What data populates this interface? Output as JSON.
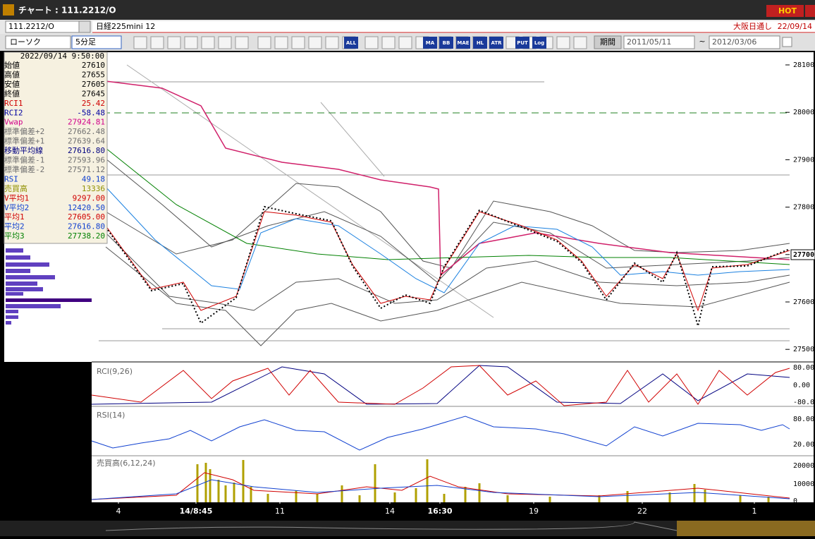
{
  "window": {
    "title": "チャート : 111.2212/O",
    "hot": "HOT"
  },
  "toolbar": {
    "symbol": "111.2212/O",
    "name": "日経225mini 12",
    "market": "大阪日通し",
    "date": "22/09/14",
    "chart_type": "ローソク",
    "interval": "5分足",
    "buttons": [
      "ALL",
      "MA",
      "BB",
      "MAE",
      "HL",
      "ATR",
      "PUT",
      "Log"
    ],
    "period": "期間",
    "from": "2011/05/11",
    "tilde": "~",
    "to": "2012/03/06"
  },
  "info": {
    "datetime": "2022/09/14 9:50:00",
    "rows": [
      {
        "label": "始値",
        "value": "27610",
        "color": "#000000"
      },
      {
        "label": "高値",
        "value": "27655",
        "color": "#000000"
      },
      {
        "label": "安値",
        "value": "27605",
        "color": "#000000"
      },
      {
        "label": "終値",
        "value": "27645",
        "color": "#000000"
      },
      {
        "label": "RCI1",
        "value": "25.42",
        "color": "#d00000"
      },
      {
        "label": "RCI2",
        "value": "-58.48",
        "color": "#0000a0"
      },
      {
        "label": "Vwap",
        "value": "27924.81",
        "color": "#d0008a"
      },
      {
        "label": "標準偏差+2",
        "value": "27662.48",
        "color": "#707070"
      },
      {
        "label": "標準偏差+1",
        "value": "27639.64",
        "color": "#707070"
      },
      {
        "label": "移動平均線",
        "value": "27616.80",
        "color": "#000080"
      },
      {
        "label": "標準偏差-1",
        "value": "27593.96",
        "color": "#707070"
      },
      {
        "label": "標準偏差-2",
        "value": "27571.12",
        "color": "#707070"
      },
      {
        "label": "RSI",
        "value": "49.18",
        "color": "#1040d0"
      },
      {
        "label": "売買高",
        "value": "13336",
        "color": "#909000"
      },
      {
        "label": "V平均1",
        "value": "9297.00",
        "color": "#d00000"
      },
      {
        "label": "V平均2",
        "value": "12420.50",
        "color": "#1040d0"
      },
      {
        "label": "平均1",
        "value": "27605.00",
        "color": "#d00000"
      },
      {
        "label": "平均2",
        "value": "27616.80",
        "color": "#1040d0"
      },
      {
        "label": "平均3",
        "value": "27738.20",
        "color": "#008000"
      }
    ]
  },
  "price_axis": [
    "28100",
    "28000",
    "27900",
    "27800",
    "27700",
    "27600",
    "27500"
  ],
  "current_price": "27700",
  "panels": {
    "rci": {
      "label": "RCI(9,26)",
      "ticks": [
        "80.00",
        "0.00",
        "-80.00"
      ]
    },
    "rsi": {
      "label": "RSI(14)",
      "ticks": [
        "80.00",
        "20.00"
      ]
    },
    "volume": {
      "label": "売買高(6,12,24)",
      "ticks": [
        "20000",
        "10000",
        "0"
      ]
    }
  },
  "x_axis": [
    "4",
    "14/8:45",
    "11",
    "14",
    "16:30",
    "19",
    "22",
    "1"
  ]
}
